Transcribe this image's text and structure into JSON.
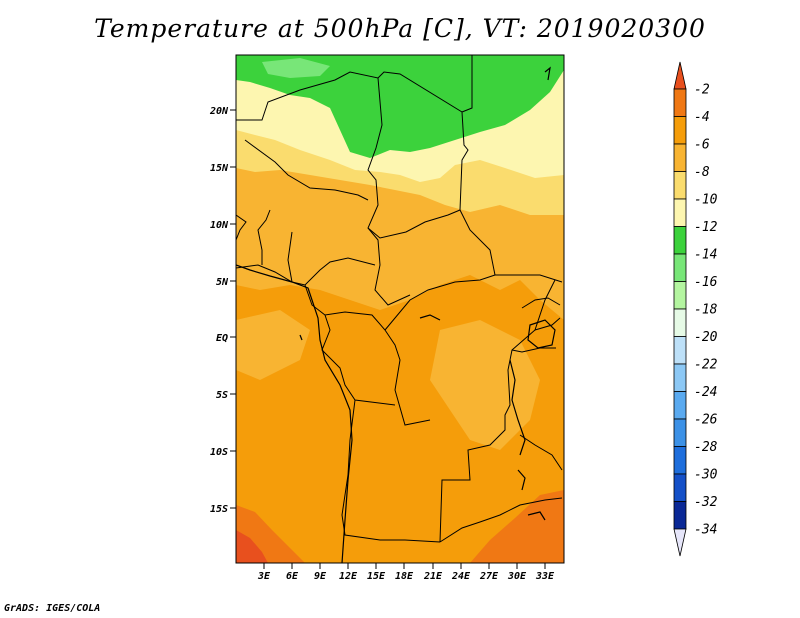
{
  "title": "Temperature at 500hPa [C], VT: 2019020300",
  "credit": "GrADS: IGES/COLA",
  "map": {
    "lat_labels": [
      "20N",
      "15N",
      "10N",
      "5N",
      "EQ",
      "5S",
      "10S",
      "15S"
    ],
    "lon_labels": [
      "3E",
      "6E",
      "9E",
      "12E",
      "15E",
      "18E",
      "21E",
      "24E",
      "27E",
      "30E",
      "33E"
    ]
  },
  "colorbar": {
    "labels": [
      "-2",
      "-4",
      "-6",
      "-8",
      "-10",
      "-12",
      "-14",
      "-16",
      "-18",
      "-20",
      "-22",
      "-24",
      "-26",
      "-28",
      "-30",
      "-32",
      "-34"
    ],
    "colors": {
      "c_m2": "#e8501e",
      "c_m4": "#f07814",
      "c_m6": "#f59d0a",
      "c_m8": "#f8b432",
      "c_m10": "#fadc6e",
      "c_m12": "#fdf6b0",
      "c_m14": "#3cd23c",
      "c_m16": "#78e678",
      "c_m18": "#b4f5a0",
      "c_m20": "#e6fae6",
      "c_m22": "#bde0f8",
      "c_m24": "#8cc8f5",
      "c_m26": "#5aaaf0",
      "c_m28": "#3c91e6",
      "c_m30": "#1e6edc",
      "c_m32": "#1450c8",
      "c_m34": "#0a2896",
      "c_low": "#e6e6fa"
    }
  }
}
